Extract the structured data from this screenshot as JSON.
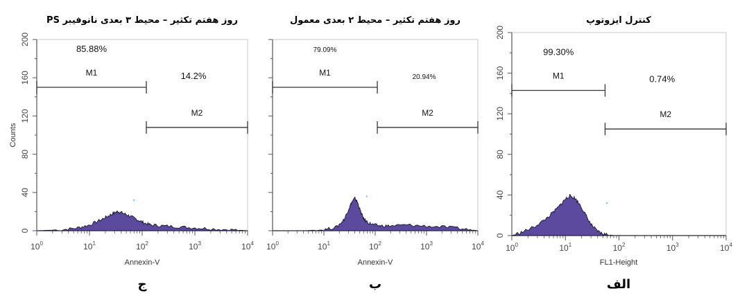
{
  "chart_data": [
    {
      "type": "area",
      "title": "روز هفتم تکثیر – محیط ۳ بعدی نانوفیبر PS",
      "panel_label": "ج",
      "xlabel": "Annexin-V",
      "ylabel": "Counts",
      "x_scale": "log",
      "xlim": [
        1,
        10000
      ],
      "ylim": [
        0,
        200
      ],
      "x_ticks": [
        "10",
        "10",
        "10",
        "10",
        "10"
      ],
      "x_tick_exps": [
        "0",
        "1",
        "2",
        "3",
        "4"
      ],
      "y_ticks": [
        "0",
        "40",
        "80",
        "120",
        "160",
        "200"
      ],
      "gates": [
        {
          "name": "M1",
          "from": 1,
          "to": 120,
          "y": 150,
          "percent": "85.88%"
        },
        {
          "name": "M2",
          "from": 120,
          "to": 10000,
          "y": 108,
          "percent": "14.2%"
        }
      ],
      "histogram": {
        "x": [
          1.0,
          3.0,
          6.0,
          10.0,
          16.0,
          22.0,
          28.0,
          34.0,
          40.0,
          50.0,
          65.0,
          85.0,
          110.0,
          150.0,
          250.0,
          500.0,
          1000.0,
          2000.0,
          5000.0,
          10000.0
        ],
        "y": [
          0,
          1,
          3,
          6,
          11,
          15,
          18,
          20,
          19,
          17,
          14,
          11,
          8,
          6,
          5,
          4,
          3,
          2,
          1,
          0
        ]
      }
    },
    {
      "type": "area",
      "title": "روز هفتم تکثیر – محیط ۲ بعدی معمول",
      "panel_label": "ب",
      "xlabel": "Annexin-V",
      "ylabel": "",
      "x_scale": "log",
      "xlim": [
        1,
        10000
      ],
      "ylim": [
        0,
        200
      ],
      "x_ticks": [
        "10",
        "10",
        "10",
        "10",
        "10"
      ],
      "x_tick_exps": [
        "0",
        "1",
        "2",
        "3",
        "4"
      ],
      "y_ticks": [],
      "gates": [
        {
          "name": "M1",
          "from": 1,
          "to": 110,
          "y": 150,
          "percent": "79.09%"
        },
        {
          "name": "M2",
          "from": 110,
          "to": 10000,
          "y": 108,
          "percent": "20.94%"
        }
      ],
      "histogram": {
        "x": [
          1.0,
          4.0,
          10.0,
          18.0,
          25.0,
          30.0,
          35.0,
          40.0,
          45.0,
          52.0,
          60.0,
          75.0,
          95.0,
          130.0,
          200.0,
          400.0,
          800.0,
          2000.0,
          5000.0,
          10000.0
        ],
        "y": [
          0,
          0,
          1,
          4,
          12,
          22,
          30,
          34,
          30,
          20,
          12,
          8,
          6,
          5,
          5,
          6,
          5,
          4,
          2,
          0
        ]
      }
    },
    {
      "type": "area",
      "title": "کنترل ایزوتوپ",
      "panel_label": "الف",
      "xlabel": "FL1-Height",
      "ylabel": "",
      "x_scale": "log",
      "xlim": [
        1,
        10000
      ],
      "ylim": [
        0,
        200
      ],
      "x_ticks": [
        "10",
        "10",
        "10",
        "10",
        "10"
      ],
      "x_tick_exps": [
        "0",
        "1",
        "2",
        "3",
        "4"
      ],
      "y_ticks": [
        "0",
        "40",
        "80",
        "120",
        "160",
        "200"
      ],
      "gates": [
        {
          "name": "M1",
          "from": 1,
          "to": 55,
          "y": 143,
          "percent": "99.30%"
        },
        {
          "name": "M2",
          "from": 55,
          "to": 10000,
          "y": 105,
          "percent": "0.74%"
        }
      ],
      "histogram": {
        "x": [
          1.0,
          1.5,
          2.5,
          4.0,
          6.0,
          8.0,
          10.0,
          12.0,
          15.0,
          19.0,
          24.0,
          30.0,
          38.0,
          48.0,
          60.0,
          80.0,
          120.0,
          300.0,
          1000.0,
          10000.0
        ],
        "y": [
          0,
          3,
          8,
          15,
          23,
          30,
          36,
          39,
          37,
          30,
          20,
          11,
          5,
          2,
          1,
          0,
          0,
          0,
          0,
          0
        ]
      }
    }
  ],
  "colors": {
    "fill": "#5c4a9e",
    "outline": "#1a1530",
    "gate": "#333333",
    "axis": "#555555"
  }
}
